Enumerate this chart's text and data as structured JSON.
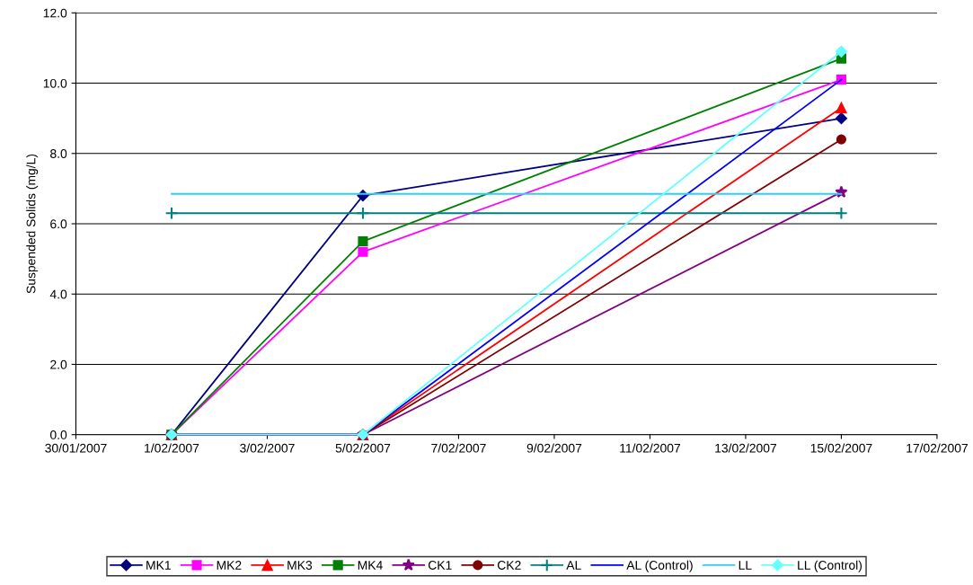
{
  "chart_data": {
    "type": "line",
    "ylabel": "Suspended Solids (mg/L)",
    "x": [
      "2007-02-01",
      "2007-02-05",
      "2007-02-15"
    ],
    "series": [
      {
        "name": "MK1",
        "color": "#000080",
        "marker": "diamond",
        "values": [
          0,
          6.8,
          9.0
        ]
      },
      {
        "name": "MK2",
        "color": "#ff00ff",
        "marker": "square",
        "values": [
          0,
          5.2,
          10.1
        ]
      },
      {
        "name": "MK3",
        "color": "#ff0000",
        "marker": "triangle",
        "values": [
          0,
          0,
          9.3
        ]
      },
      {
        "name": "MK4",
        "color": "#008000",
        "marker": "square",
        "values": [
          0,
          5.5,
          10.7
        ]
      },
      {
        "name": "CK1",
        "color": "#800080",
        "marker": "star",
        "values": [
          0,
          0,
          6.9
        ]
      },
      {
        "name": "CK2",
        "color": "#800000",
        "marker": "circle",
        "values": [
          0,
          0,
          8.4
        ]
      },
      {
        "name": "AL",
        "color": "#008080",
        "marker": "cross",
        "values": [
          6.3,
          6.3,
          6.3
        ]
      },
      {
        "name": "AL (Control)",
        "color": "#0000ff",
        "marker": "none",
        "values": [
          0,
          0,
          10.1
        ]
      },
      {
        "name": "LL",
        "color": "#33ccff",
        "marker": "none",
        "values": [
          6.85,
          6.85,
          6.85
        ]
      },
      {
        "name": "LL (Control)",
        "color": "#66ffff",
        "marker": "diamond",
        "values": [
          0,
          0,
          10.9
        ]
      }
    ],
    "xlim": [
      "2007-01-30",
      "2007-02-17"
    ],
    "xticks": [
      {
        "value": "2007-01-30",
        "label": "30/01/2007"
      },
      {
        "value": "2007-02-01",
        "label": "1/02/2007"
      },
      {
        "value": "2007-02-03",
        "label": "3/02/2007"
      },
      {
        "value": "2007-02-05",
        "label": "5/02/2007"
      },
      {
        "value": "2007-02-07",
        "label": "7/02/2007"
      },
      {
        "value": "2007-02-09",
        "label": "9/02/2007"
      },
      {
        "value": "2007-02-11",
        "label": "11/02/2007"
      },
      {
        "value": "2007-02-13",
        "label": "13/02/2007"
      },
      {
        "value": "2007-02-15",
        "label": "15/02/2007"
      },
      {
        "value": "2007-02-17",
        "label": "17/02/2007"
      }
    ],
    "ylim": [
      0,
      12
    ],
    "yticks": [
      {
        "value": 0,
        "label": "0.0"
      },
      {
        "value": 2,
        "label": "2.0"
      },
      {
        "value": 4,
        "label": "4.0"
      },
      {
        "value": 6,
        "label": "6.0"
      },
      {
        "value": 8,
        "label": "8.0"
      },
      {
        "value": 10,
        "label": "10.0"
      },
      {
        "value": 12,
        "label": "12.0"
      }
    ],
    "grid": "y",
    "legend": "bottom",
    "line_style": "solid"
  }
}
